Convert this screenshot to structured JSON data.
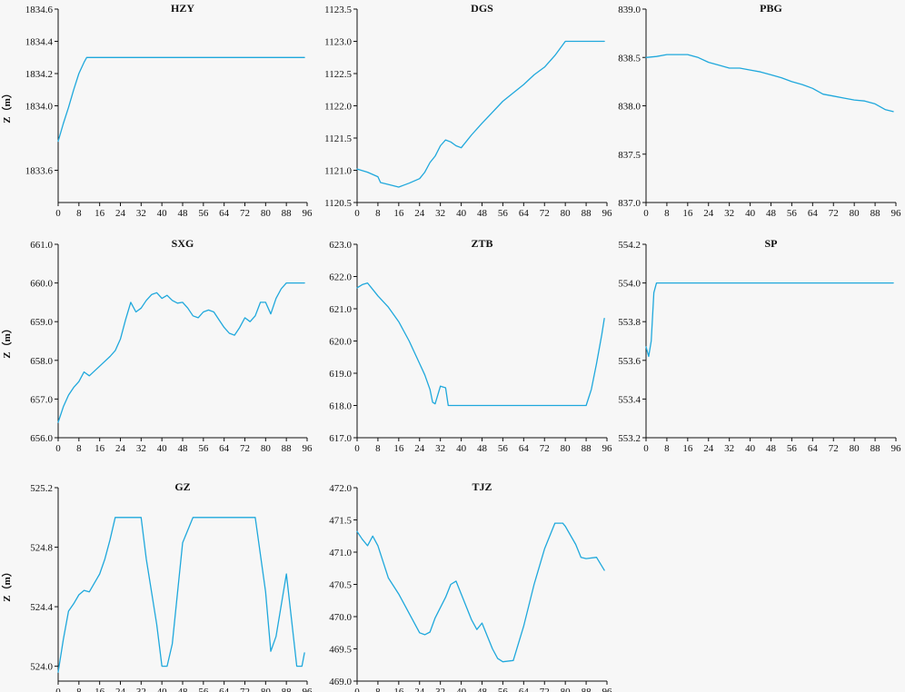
{
  "colors": {
    "series": "#1fa8dc",
    "axis": "#111111",
    "background": "#f7f7f7"
  },
  "chart_data": [
    {
      "type": "line",
      "title": "HZY",
      "ylabel": "Z（m）",
      "xlabel": "",
      "ylim": [
        1833.4,
        1834.6
      ],
      "yticks": [
        "1833.6",
        "1834.0",
        "1834.2",
        "1834.4",
        "1834.6"
      ],
      "xlim": [
        0,
        96
      ],
      "xticks": [
        "0",
        "8",
        "16",
        "24",
        "32",
        "40",
        "48",
        "56",
        "64",
        "72",
        "80",
        "88",
        "96"
      ],
      "x": [
        0,
        2,
        4,
        6,
        8,
        10,
        11,
        12,
        16,
        24,
        32,
        40,
        48,
        56,
        64,
        72,
        80,
        88,
        95
      ],
      "y": [
        1833.78,
        1833.89,
        1833.99,
        1834.1,
        1834.2,
        1834.27,
        1834.3,
        1834.3,
        1834.3,
        1834.3,
        1834.3,
        1834.3,
        1834.3,
        1834.3,
        1834.3,
        1834.3,
        1834.3,
        1834.3,
        1834.3
      ]
    },
    {
      "type": "line",
      "title": "DGS",
      "ylabel": "",
      "xlabel": "",
      "ylim": [
        1120.5,
        1123.5
      ],
      "yticks": [
        "1120.5",
        "1121.0",
        "1121.5",
        "1122.0",
        "1122.5",
        "1123.0",
        "1123.5"
      ],
      "xlim": [
        0,
        96
      ],
      "xticks": [
        "0",
        "8",
        "16",
        "24",
        "32",
        "40",
        "48",
        "56",
        "64",
        "72",
        "80",
        "88",
        "96"
      ],
      "x": [
        0,
        4,
        8,
        9,
        12,
        16,
        18,
        20,
        24,
        26,
        28,
        30,
        32,
        34,
        36,
        38,
        40,
        44,
        48,
        52,
        56,
        60,
        64,
        68,
        72,
        76,
        80,
        84,
        88,
        92,
        95
      ],
      "y": [
        1121.02,
        1120.97,
        1120.9,
        1120.81,
        1120.78,
        1120.74,
        1120.77,
        1120.8,
        1120.87,
        1120.97,
        1121.12,
        1121.22,
        1121.38,
        1121.47,
        1121.44,
        1121.38,
        1121.35,
        1121.55,
        1121.73,
        1121.9,
        1122.07,
        1122.2,
        1122.33,
        1122.48,
        1122.6,
        1122.78,
        1123.0,
        1123.0,
        1123.0,
        1123.0,
        1123.0
      ]
    },
    {
      "type": "line",
      "title": "PBG",
      "ylabel": "",
      "xlabel": "",
      "ylim": [
        837.0,
        839.0
      ],
      "yticks": [
        "837.0",
        "837.5",
        "838.0",
        "838.5",
        "839.0"
      ],
      "xlim": [
        0,
        96
      ],
      "xticks": [
        "0",
        "8",
        "16",
        "24",
        "32",
        "40",
        "48",
        "56",
        "64",
        "72",
        "80",
        "88",
        "96"
      ],
      "x": [
        0,
        4,
        8,
        12,
        16,
        20,
        24,
        28,
        32,
        36,
        40,
        44,
        48,
        52,
        56,
        60,
        64,
        68,
        72,
        76,
        80,
        84,
        88,
        92,
        95
      ],
      "y": [
        838.5,
        838.51,
        838.53,
        838.53,
        838.53,
        838.5,
        838.45,
        838.42,
        838.39,
        838.39,
        838.37,
        838.35,
        838.32,
        838.29,
        838.25,
        838.22,
        838.18,
        838.12,
        838.1,
        838.08,
        838.06,
        838.05,
        838.02,
        837.96,
        837.94
      ]
    },
    {
      "type": "line",
      "title": "SXG",
      "ylabel": "Z（m）",
      "xlabel": "",
      "ylim": [
        656.0,
        661.0
      ],
      "yticks": [
        "656.0",
        "657.0",
        "658.0",
        "659.0",
        "660.0",
        "661.0"
      ],
      "xlim": [
        0,
        96
      ],
      "xticks": [
        "0",
        "8",
        "16",
        "24",
        "32",
        "40",
        "48",
        "56",
        "64",
        "72",
        "80",
        "88",
        "96"
      ],
      "x": [
        0,
        2,
        4,
        6,
        8,
        10,
        12,
        16,
        20,
        22,
        24,
        26,
        28,
        30,
        32,
        34,
        36,
        38,
        40,
        42,
        44,
        46,
        48,
        50,
        52,
        54,
        56,
        58,
        60,
        62,
        64,
        66,
        68,
        70,
        72,
        74,
        76,
        78,
        80,
        82,
        84,
        86,
        88,
        90,
        92,
        95
      ],
      "y": [
        656.4,
        656.8,
        657.1,
        657.3,
        657.45,
        657.7,
        657.6,
        657.85,
        658.1,
        658.25,
        658.55,
        659.05,
        659.5,
        659.25,
        659.35,
        659.55,
        659.7,
        659.75,
        659.6,
        659.68,
        659.55,
        659.48,
        659.5,
        659.35,
        659.15,
        659.1,
        659.25,
        659.3,
        659.25,
        659.05,
        658.85,
        658.7,
        658.65,
        658.85,
        659.1,
        659.0,
        659.15,
        659.5,
        659.5,
        659.2,
        659.6,
        659.85,
        660.0,
        660.0,
        660.0,
        660.0
      ]
    },
    {
      "type": "line",
      "title": "ZTB",
      "ylabel": "",
      "xlabel": "",
      "ylim": [
        617.0,
        623.0
      ],
      "yticks": [
        "617.0",
        "618.0",
        "619.0",
        "620.0",
        "621.0",
        "622.0",
        "623.0"
      ],
      "xlim": [
        0,
        96
      ],
      "xticks": [
        "0",
        "8",
        "16",
        "24",
        "32",
        "40",
        "48",
        "56",
        "64",
        "72",
        "80",
        "88",
        "96"
      ],
      "x": [
        0,
        2,
        4,
        6,
        8,
        12,
        16,
        20,
        24,
        26,
        28,
        29,
        30,
        32,
        34,
        35,
        36,
        40,
        48,
        56,
        64,
        72,
        80,
        88,
        90,
        92,
        94,
        95
      ],
      "y": [
        621.65,
        621.75,
        621.8,
        621.6,
        621.4,
        621.05,
        620.6,
        620.0,
        619.3,
        618.95,
        618.5,
        618.1,
        618.05,
        618.6,
        618.55,
        618.0,
        618.0,
        618.0,
        618.0,
        618.0,
        618.0,
        618.0,
        618.0,
        618.0,
        618.5,
        619.3,
        620.2,
        620.7
      ]
    },
    {
      "type": "line",
      "title": "SP",
      "ylabel": "",
      "xlabel": "",
      "ylim": [
        553.2,
        554.2
      ],
      "yticks": [
        "553.2",
        "553.4",
        "553.6",
        "553.8",
        "554.0",
        "554.2"
      ],
      "xlim": [
        0,
        96
      ],
      "xticks": [
        "0",
        "8",
        "16",
        "24",
        "32",
        "40",
        "48",
        "56",
        "64",
        "72",
        "80",
        "88",
        "96"
      ],
      "x": [
        0,
        1,
        2,
        3,
        4,
        8,
        16,
        24,
        32,
        40,
        48,
        56,
        64,
        72,
        80,
        88,
        95
      ],
      "y": [
        553.67,
        553.62,
        553.7,
        553.95,
        554.0,
        554.0,
        554.0,
        554.0,
        554.0,
        554.0,
        554.0,
        554.0,
        554.0,
        554.0,
        554.0,
        554.0,
        554.0
      ]
    },
    {
      "type": "line",
      "title": "GZ",
      "ylabel": "Z（m）",
      "xlabel": "",
      "ylim": [
        523.9,
        525.2
      ],
      "yticks": [
        "524.0",
        "524.4",
        "524.8",
        "525.2"
      ],
      "xlim": [
        0,
        96
      ],
      "xticks": [
        "0",
        "8",
        "16",
        "24",
        "32",
        "40",
        "48",
        "56",
        "64",
        "72",
        "80",
        "88",
        "96"
      ],
      "x": [
        0,
        2,
        4,
        6,
        8,
        10,
        12,
        16,
        18,
        20,
        22,
        24,
        28,
        32,
        34,
        38,
        40,
        42,
        44,
        48,
        52,
        56,
        64,
        72,
        76,
        80,
        82,
        84,
        88,
        92,
        94,
        95
      ],
      "y": [
        523.96,
        524.18,
        524.37,
        524.42,
        524.48,
        524.51,
        524.5,
        524.62,
        524.72,
        524.85,
        525.0,
        525.0,
        525.0,
        525.0,
        524.72,
        524.28,
        524.0,
        524.0,
        524.15,
        524.83,
        525.0,
        525.0,
        525.0,
        525.0,
        525.0,
        524.5,
        524.1,
        524.2,
        524.62,
        524.0,
        524.0,
        524.09
      ]
    },
    {
      "type": "line",
      "title": "TJZ",
      "ylabel": "",
      "xlabel": "",
      "ylim": [
        469.0,
        472.0
      ],
      "yticks": [
        "469.0",
        "469.5",
        "470.0",
        "470.5",
        "471.0",
        "471.5",
        "472.0"
      ],
      "xlim": [
        0,
        96
      ],
      "xticks": [
        "0",
        "8",
        "16",
        "24",
        "32",
        "40",
        "48",
        "56",
        "64",
        "72",
        "80",
        "88",
        "96"
      ],
      "x": [
        0,
        2,
        4,
        6,
        8,
        10,
        12,
        16,
        20,
        24,
        26,
        28,
        30,
        34,
        36,
        38,
        40,
        44,
        46,
        48,
        52,
        54,
        56,
        60,
        64,
        68,
        72,
        76,
        79,
        80,
        84,
        86,
        88,
        92,
        95
      ],
      "y": [
        471.32,
        471.2,
        471.1,
        471.25,
        471.1,
        470.85,
        470.6,
        470.35,
        470.05,
        469.75,
        469.72,
        469.76,
        469.98,
        470.3,
        470.5,
        470.55,
        470.35,
        469.95,
        469.8,
        469.9,
        469.5,
        469.35,
        469.3,
        469.32,
        469.85,
        470.5,
        471.05,
        471.45,
        471.45,
        471.4,
        471.12,
        470.92,
        470.9,
        470.92,
        470.72
      ]
    }
  ]
}
